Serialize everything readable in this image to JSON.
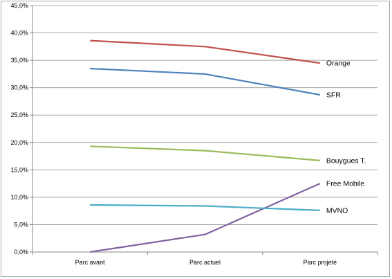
{
  "chart_data": {
    "type": "line",
    "categories": [
      "Parc avant",
      "Parc actuel",
      "Parc projeté"
    ],
    "ylim": [
      0,
      45
    ],
    "y_tick_labels": [
      "0,0%",
      "5,0%",
      "10,0%",
      "15,0%",
      "20,0%",
      "25,0%",
      "30,0%",
      "35,0%",
      "40,0%",
      "45,0%"
    ],
    "grid": "horizontal",
    "legend": "inline labels at line ends (right)",
    "series": [
      {
        "name": "Orange",
        "color": "#c0504d",
        "values": [
          38.6,
          37.5,
          34.5
        ]
      },
      {
        "name": "SFR",
        "color": "#4f81bd",
        "values": [
          33.5,
          32.5,
          28.7
        ]
      },
      {
        "name": "Bouygues T.",
        "color": "#9bbb59",
        "values": [
          19.3,
          18.5,
          16.7
        ]
      },
      {
        "name": "Free Mobile",
        "color": "#8064a2",
        "values": [
          0.0,
          3.2,
          12.5
        ]
      },
      {
        "name": "MVNO",
        "color": "#4bacc6",
        "values": [
          8.6,
          8.4,
          7.6
        ]
      }
    ]
  }
}
